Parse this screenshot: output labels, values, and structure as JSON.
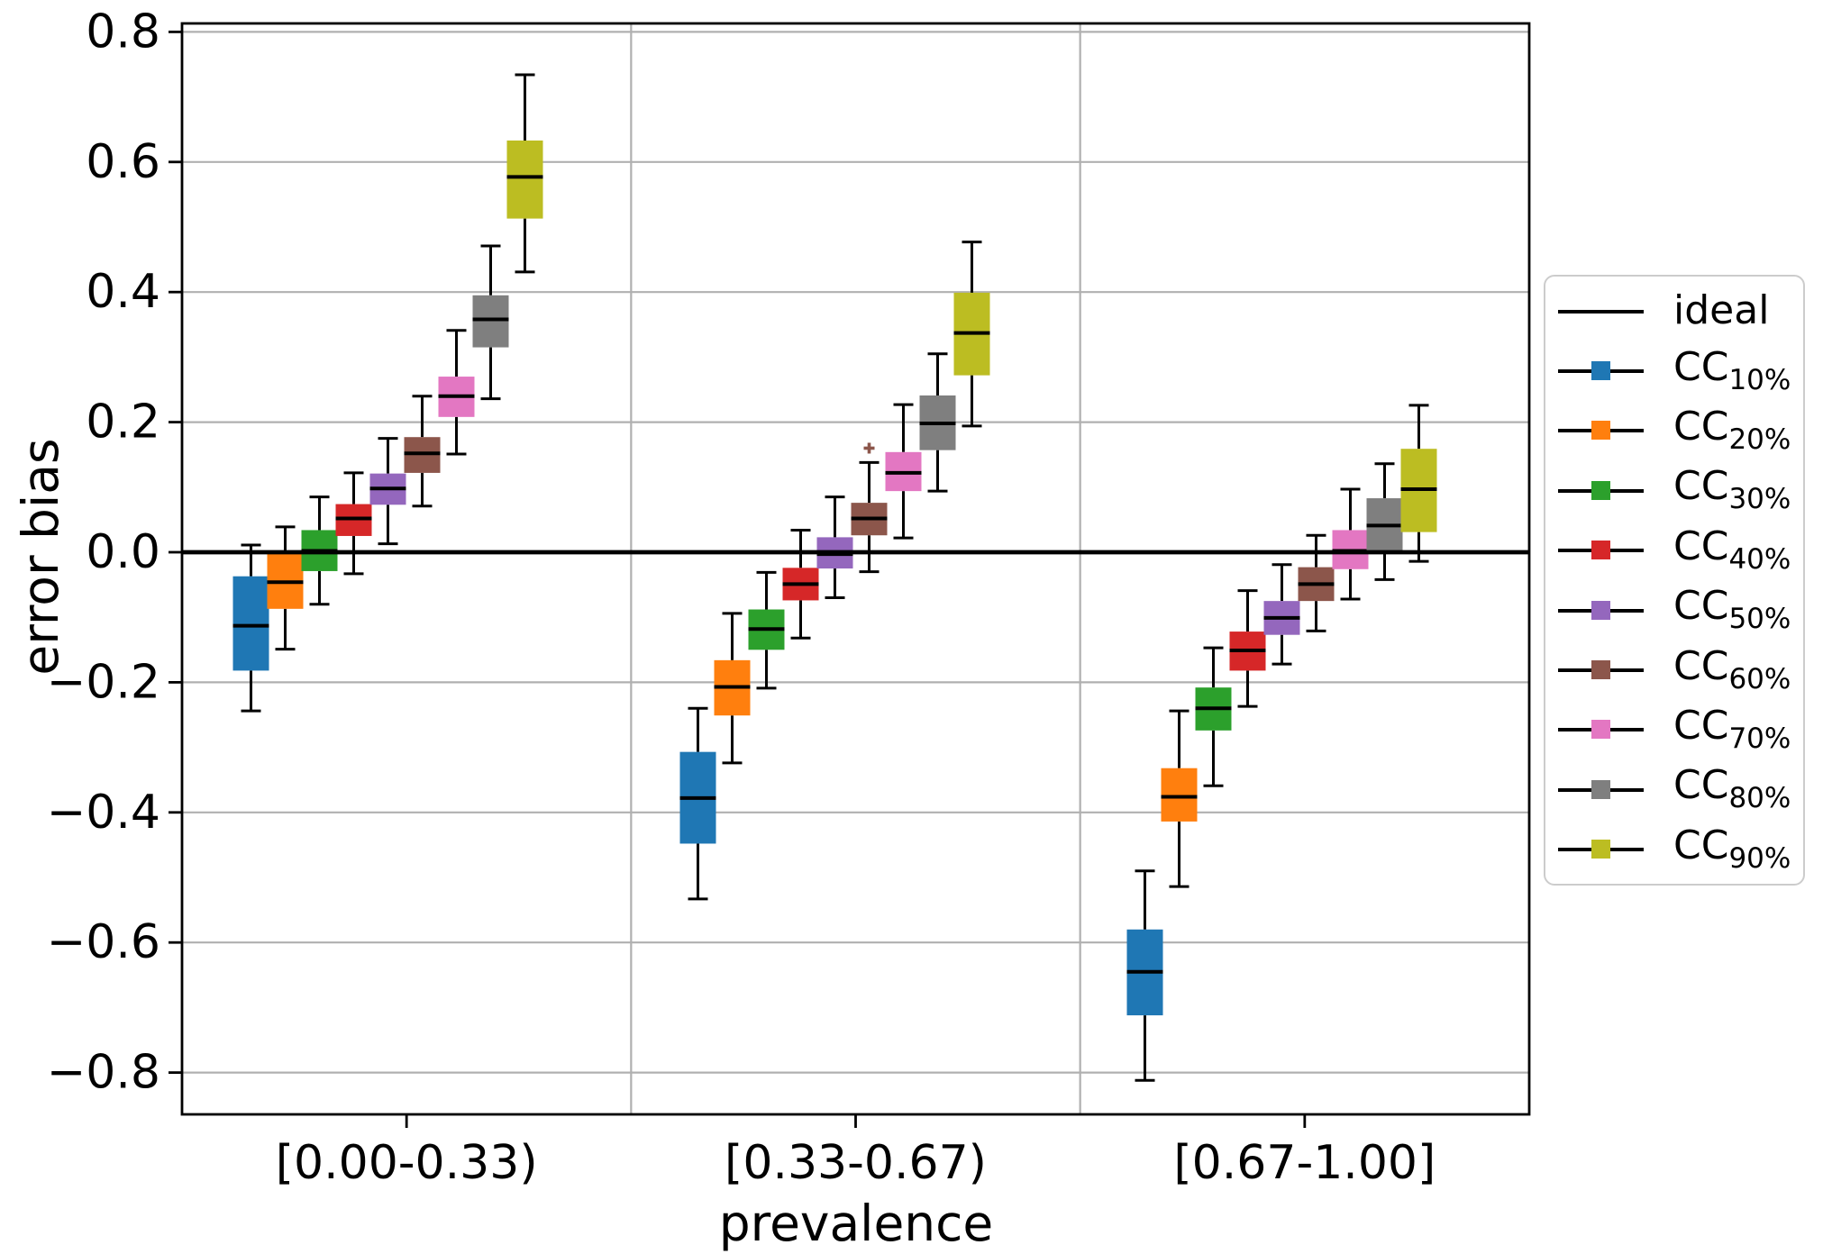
{
  "figure": {
    "type_note": "grouped boxplot figure",
    "background": "#ffffff"
  },
  "chart_data": {
    "type": "boxplot",
    "title": "",
    "xlabel": "prevalence",
    "ylabel": "error bias",
    "ylim": [
      -0.866,
      0.812
    ],
    "grid": true,
    "legend_position": "right",
    "yticks": [
      0.8,
      0.6,
      0.4,
      0.2,
      0.0,
      -0.2,
      -0.4,
      -0.6,
      -0.8
    ],
    "ytick_labels": [
      "0.8",
      "0.6",
      "0.4",
      "0.2",
      "0.0",
      "−0.2",
      "−0.4",
      "−0.6",
      "−0.8"
    ],
    "categories": [
      "[0.00-0.33)",
      "[0.33-0.67)",
      "[0.67-1.00]"
    ],
    "ideal_line": {
      "label": "ideal",
      "y": 0.0,
      "color": "#000000"
    },
    "series": [
      {
        "name": "CC",
        "sub": "10%",
        "color": "#1f77b4",
        "groups": [
          {
            "whislo": -0.244,
            "q1": -0.182,
            "med": -0.113,
            "q3": -0.037,
            "whishi": 0.011,
            "fliers": []
          },
          {
            "whislo": -0.533,
            "q1": -0.448,
            "med": -0.378,
            "q3": -0.307,
            "whishi": -0.24,
            "fliers": []
          },
          {
            "whislo": -0.812,
            "q1": -0.712,
            "med": -0.645,
            "q3": -0.58,
            "whishi": -0.49,
            "fliers": []
          }
        ]
      },
      {
        "name": "CC",
        "sub": "20%",
        "color": "#ff7f0e",
        "groups": [
          {
            "whislo": -0.149,
            "q1": -0.087,
            "med": -0.046,
            "q3": -0.002,
            "whishi": 0.039,
            "fliers": []
          },
          {
            "whislo": -0.324,
            "q1": -0.251,
            "med": -0.207,
            "q3": -0.166,
            "whishi": -0.094,
            "fliers": []
          },
          {
            "whislo": -0.514,
            "q1": -0.414,
            "med": -0.376,
            "q3": -0.332,
            "whishi": -0.244,
            "fliers": []
          }
        ]
      },
      {
        "name": "CC",
        "sub": "30%",
        "color": "#2ca02c",
        "groups": [
          {
            "whislo": -0.08,
            "q1": -0.029,
            "med": 0.002,
            "q3": 0.034,
            "whishi": 0.085,
            "fliers": []
          },
          {
            "whislo": -0.209,
            "q1": -0.15,
            "med": -0.118,
            "q3": -0.088,
            "whishi": -0.031,
            "fliers": []
          },
          {
            "whislo": -0.359,
            "q1": -0.274,
            "med": -0.24,
            "q3": -0.208,
            "whishi": -0.147,
            "fliers": []
          }
        ]
      },
      {
        "name": "CC",
        "sub": "40%",
        "color": "#d62728",
        "groups": [
          {
            "whislo": -0.033,
            "q1": 0.025,
            "med": 0.052,
            "q3": 0.074,
            "whishi": 0.122,
            "fliers": []
          },
          {
            "whislo": -0.132,
            "q1": -0.074,
            "med": -0.049,
            "q3": -0.024,
            "whishi": 0.034,
            "fliers": []
          },
          {
            "whislo": -0.237,
            "q1": -0.182,
            "med": -0.151,
            "q3": -0.122,
            "whishi": -0.059,
            "fliers": []
          }
        ]
      },
      {
        "name": "CC",
        "sub": "50%",
        "color": "#9467bd",
        "groups": [
          {
            "whislo": 0.013,
            "q1": 0.073,
            "med": 0.098,
            "q3": 0.121,
            "whishi": 0.175,
            "fliers": []
          },
          {
            "whislo": -0.07,
            "q1": -0.025,
            "med": -0.003,
            "q3": 0.023,
            "whishi": 0.085,
            "fliers": []
          },
          {
            "whislo": -0.172,
            "q1": -0.127,
            "med": -0.101,
            "q3": -0.075,
            "whishi": -0.019,
            "fliers": []
          }
        ]
      },
      {
        "name": "CC",
        "sub": "60%",
        "color": "#8c564b",
        "groups": [
          {
            "whislo": 0.071,
            "q1": 0.122,
            "med": 0.152,
            "q3": 0.177,
            "whishi": 0.24,
            "fliers": []
          },
          {
            "whislo": -0.03,
            "q1": 0.026,
            "med": 0.052,
            "q3": 0.076,
            "whishi": 0.138,
            "fliers": [
              0.16
            ]
          },
          {
            "whislo": -0.121,
            "q1": -0.075,
            "med": -0.049,
            "q3": -0.023,
            "whishi": 0.026,
            "fliers": []
          }
        ]
      },
      {
        "name": "CC",
        "sub": "70%",
        "color": "#e377c2",
        "groups": [
          {
            "whislo": 0.151,
            "q1": 0.208,
            "med": 0.24,
            "q3": 0.27,
            "whishi": 0.341,
            "fliers": []
          },
          {
            "whislo": 0.022,
            "q1": 0.094,
            "med": 0.122,
            "q3": 0.154,
            "whishi": 0.227,
            "fliers": []
          },
          {
            "whislo": -0.072,
            "q1": -0.026,
            "med": 0.002,
            "q3": 0.034,
            "whishi": 0.097,
            "fliers": []
          }
        ]
      },
      {
        "name": "CC",
        "sub": "80%",
        "color": "#7f7f7f",
        "groups": [
          {
            "whislo": 0.236,
            "q1": 0.315,
            "med": 0.358,
            "q3": 0.395,
            "whishi": 0.471,
            "fliers": []
          },
          {
            "whislo": 0.094,
            "q1": 0.157,
            "med": 0.198,
            "q3": 0.241,
            "whishi": 0.305,
            "fliers": []
          },
          {
            "whislo": -0.042,
            "q1": 0.002,
            "med": 0.041,
            "q3": 0.083,
            "whishi": 0.136,
            "fliers": []
          }
        ]
      },
      {
        "name": "CC",
        "sub": "90%",
        "color": "#bcbd22",
        "groups": [
          {
            "whislo": 0.431,
            "q1": 0.513,
            "med": 0.577,
            "q3": 0.633,
            "whishi": 0.734,
            "fliers": []
          },
          {
            "whislo": 0.194,
            "q1": 0.272,
            "med": 0.337,
            "q3": 0.399,
            "whishi": 0.477,
            "fliers": []
          },
          {
            "whislo": -0.014,
            "q1": 0.031,
            "med": 0.097,
            "q3": 0.159,
            "whishi": 0.226,
            "fliers": []
          }
        ]
      }
    ],
    "colors": {
      "grid": "#b0b0b0",
      "frame": "#000000",
      "legend_border": "#cccccc"
    }
  }
}
